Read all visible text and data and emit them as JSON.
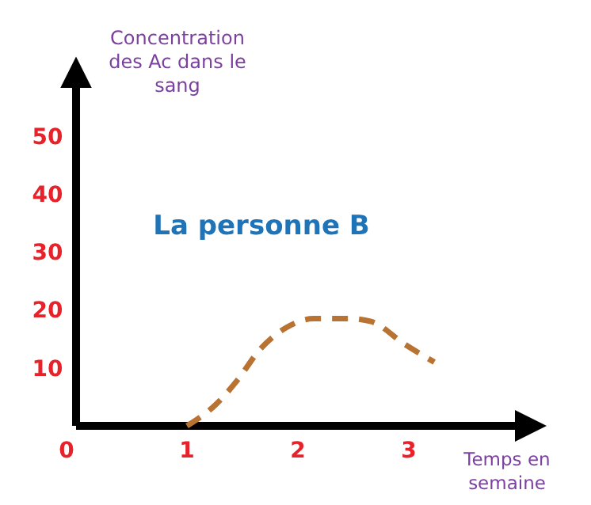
{
  "chart_data": {
    "type": "line",
    "title": "La personne B",
    "xlabel": "Temps en semaine",
    "ylabel": "Concentration des Ac dans le sang",
    "xlim": [
      0,
      4.1
    ],
    "ylim": [
      0,
      61
    ],
    "xticks": [
      0,
      1,
      2,
      3
    ],
    "yticks": [
      10,
      20,
      30,
      40,
      50
    ],
    "grid": false,
    "line_style": "dashed",
    "series": [
      {
        "color": "#b87333",
        "x": [
          1,
          1.25,
          1.46,
          1.65,
          1.9,
          2.14,
          2.47,
          2.66,
          2.97,
          3.23
        ],
        "values": [
          0,
          3.5,
          8,
          13,
          17,
          18.5,
          18.5,
          18,
          14,
          11
        ]
      }
    ]
  }
}
